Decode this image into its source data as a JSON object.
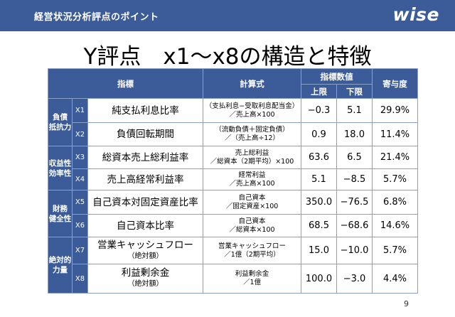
{
  "header": {
    "breadcrumb": "経営状況分析評点のポイント",
    "logo": "wise"
  },
  "title": "Y評点　x1〜x8の構造と特徴",
  "table": {
    "headers": {
      "indicator": "指標",
      "formula": "計算式",
      "values_group": "指標数値",
      "upper": "上限",
      "lower": "下限",
      "contribution": "寄与度"
    },
    "groups": [
      "負債\n抵抗力",
      "収益性\n効率性",
      "財務\n健全性",
      "絶対的\n力量"
    ],
    "rows": [
      {
        "code": "X1",
        "name": "純支払利息比率",
        "name_sub": "",
        "formula": "（支払利息−受取利息配当金）\n／売上高×100",
        "upper": "−0.3",
        "lower": "5.1",
        "contribution": "29.9%"
      },
      {
        "code": "X2",
        "name": "負債回転期間",
        "name_sub": "",
        "formula": "（流動負債＋固定負債）\n／（売上高÷12）",
        "upper": "0.9",
        "lower": "18.0",
        "contribution": "11.4%"
      },
      {
        "code": "X3",
        "name": "総資本売上総利益率",
        "name_sub": "",
        "formula": "売上総利益\n／総資本（2期平均）×100",
        "upper": "63.6",
        "lower": "6.5",
        "contribution": "21.4%"
      },
      {
        "code": "X4",
        "name": "売上高経常利益率",
        "name_sub": "",
        "formula": "経常利益\n／売上高×100",
        "upper": "5.1",
        "lower": "−8.5",
        "contribution": "5.7%"
      },
      {
        "code": "X5",
        "name": "自己資本対固定資産比率",
        "name_sub": "",
        "formula": "自己資本\n／固定資産×100",
        "upper": "350.0",
        "lower": "−76.5",
        "contribution": "6.8%"
      },
      {
        "code": "X6",
        "name": "自己資本比率",
        "name_sub": "",
        "formula": "自己資本\n／総資本×100",
        "upper": "68.5",
        "lower": "−68.6",
        "contribution": "14.6%"
      },
      {
        "code": "X7",
        "name": "営業キャッシュフロー",
        "name_sub": "（絶対額）",
        "formula": "営業キャッシュフロー\n／1億（2期平均）",
        "upper": "15.0",
        "lower": "−10.0",
        "contribution": "5.7%"
      },
      {
        "code": "X8",
        "name": "利益剰余金",
        "name_sub": "（絶対額）",
        "formula": "利益剰余金\n／1億",
        "upper": "100.0",
        "lower": "−3.0",
        "contribution": "4.4%"
      }
    ]
  },
  "page_number": "9",
  "colors": {
    "header_bg": "#3b5c99",
    "grid": "#8aa0c4"
  }
}
